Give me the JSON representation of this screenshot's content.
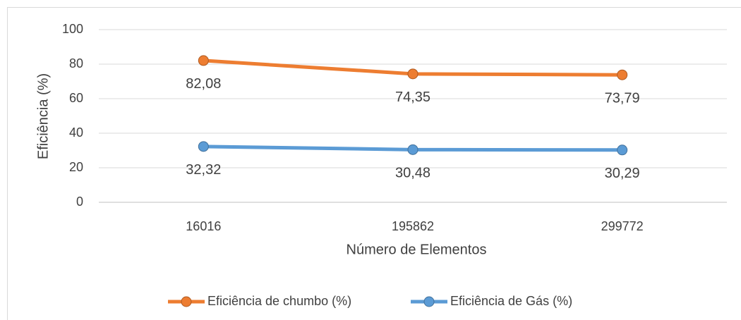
{
  "chart_data": {
    "type": "line",
    "x_label": "Número de Elementos",
    "y_label": "Eficiência (%)",
    "categories": [
      "16016",
      "195862",
      "299772"
    ],
    "series": [
      {
        "name": "Eficiência de chumbo (%)",
        "color": "#ed7d31",
        "values": [
          82.08,
          74.35,
          73.79
        ],
        "value_labels": [
          "82,08",
          "74,35",
          "73,79"
        ]
      },
      {
        "name": "Eficiência de Gás (%)",
        "color": "#5b9bd5",
        "values": [
          32.32,
          30.48,
          30.29
        ],
        "value_labels": [
          "32,32",
          "30,48",
          "30,29"
        ]
      }
    ],
    "ylim": [
      0,
      100
    ],
    "yticks": [
      0,
      20,
      40,
      60,
      80,
      100
    ],
    "grid": true,
    "legend": "bottom"
  }
}
